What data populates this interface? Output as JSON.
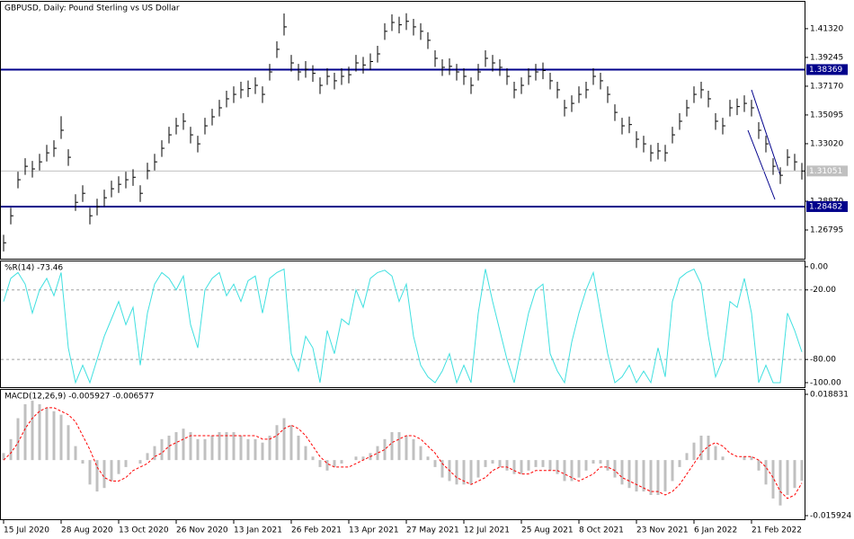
{
  "chart_data": [
    {
      "type": "ohlc",
      "title": "GBPUSD, Daily:  Pound Sterling vs US Dollar",
      "color": "#000000",
      "high": [
        1.2645,
        1.284,
        1.31,
        1.3197,
        1.3178,
        1.3229,
        1.3294,
        1.3327,
        1.35,
        1.3262,
        1.2937,
        1.3002,
        1.284,
        1.2905,
        1.297,
        1.3035,
        1.3067,
        1.31,
        1.3118,
        1.3002,
        1.3165,
        1.3229,
        1.3327,
        1.3424,
        1.3489,
        1.3522,
        1.3424,
        1.3359,
        1.3489,
        1.3554,
        1.3619,
        1.3684,
        1.3716,
        1.3749,
        1.3758,
        1.3781,
        1.3716,
        1.3878,
        1.4041,
        1.4242,
        1.3943,
        1.3878,
        1.3898,
        1.3868,
        1.3781,
        1.3846,
        1.3814,
        1.3846,
        1.3858,
        1.3943,
        1.3928,
        1.3953,
        1.4008,
        1.4171,
        1.4235,
        1.4218,
        1.4243,
        1.4203,
        1.4171,
        1.4106,
        1.3976,
        1.3911,
        1.3918,
        1.3878,
        1.3846,
        1.3781,
        1.3878,
        1.3976,
        1.3943,
        1.3911,
        1.3846,
        1.3749,
        1.3781,
        1.3846,
        1.3878,
        1.3888,
        1.3814,
        1.3749,
        1.3619,
        1.3651,
        1.3716,
        1.3749,
        1.3846,
        1.3814,
        1.3716,
        1.3586,
        1.3489,
        1.3498,
        1.3392,
        1.3359,
        1.3294,
        1.3308,
        1.3294,
        1.3424,
        1.3522,
        1.3619,
        1.3716,
        1.3749,
        1.3684,
        1.3522,
        1.3489,
        1.3619,
        1.3628,
        1.3651,
        1.3619,
        1.3457,
        1.3359,
        1.3197,
        1.3132,
        1.3262,
        1.3229,
        1.3163
      ],
      "low": [
        1.2525,
        1.272,
        1.298,
        1.3077,
        1.3058,
        1.3109,
        1.3174,
        1.3207,
        1.3337,
        1.3142,
        1.2817,
        1.2882,
        1.272,
        1.2785,
        1.285,
        1.2915,
        1.2947,
        1.298,
        1.2998,
        1.2882,
        1.3045,
        1.3109,
        1.3207,
        1.3304,
        1.3369,
        1.3402,
        1.3304,
        1.3239,
        1.3369,
        1.3434,
        1.3499,
        1.3564,
        1.3596,
        1.3629,
        1.3638,
        1.3661,
        1.3596,
        1.3758,
        1.3921,
        1.4083,
        1.3823,
        1.3758,
        1.3778,
        1.3748,
        1.3661,
        1.3726,
        1.3694,
        1.3726,
        1.3738,
        1.3823,
        1.3808,
        1.3833,
        1.3888,
        1.4051,
        1.4115,
        1.4098,
        1.4123,
        1.4083,
        1.4051,
        1.3986,
        1.3856,
        1.3791,
        1.3798,
        1.3758,
        1.3726,
        1.3661,
        1.3758,
        1.3856,
        1.3823,
        1.3791,
        1.3726,
        1.3629,
        1.3661,
        1.3726,
        1.3758,
        1.3768,
        1.3694,
        1.3629,
        1.3499,
        1.3531,
        1.3596,
        1.3629,
        1.3726,
        1.3694,
        1.3596,
        1.3466,
        1.3369,
        1.3378,
        1.3272,
        1.3239,
        1.3174,
        1.3188,
        1.3174,
        1.3304,
        1.3402,
        1.3499,
        1.3596,
        1.3629,
        1.3564,
        1.3402,
        1.3369,
        1.3499,
        1.3508,
        1.3531,
        1.3499,
        1.3337,
        1.3239,
        1.3077,
        1.3012,
        1.3142,
        1.3109,
        1.3043
      ],
      "close": [
        1.2587,
        1.2782,
        1.3042,
        1.3139,
        1.312,
        1.3171,
        1.3236,
        1.3269,
        1.3399,
        1.3204,
        1.2879,
        1.2944,
        1.2782,
        1.2847,
        1.2912,
        1.2977,
        1.3009,
        1.3042,
        1.306,
        1.2944,
        1.3107,
        1.3171,
        1.3269,
        1.3366,
        1.3431,
        1.3464,
        1.3366,
        1.3301,
        1.3431,
        1.3496,
        1.3561,
        1.3626,
        1.3658,
        1.3691,
        1.37,
        1.3723,
        1.3658,
        1.382,
        1.3983,
        1.4145,
        1.3885,
        1.382,
        1.384,
        1.381,
        1.3723,
        1.3788,
        1.3756,
        1.3788,
        1.38,
        1.3885,
        1.387,
        1.3895,
        1.395,
        1.4113,
        1.4177,
        1.416,
        1.4185,
        1.4145,
        1.4113,
        1.4048,
        1.3918,
        1.3853,
        1.386,
        1.382,
        1.3788,
        1.3723,
        1.382,
        1.3918,
        1.3885,
        1.3853,
        1.3788,
        1.3691,
        1.3723,
        1.3788,
        1.382,
        1.383,
        1.3756,
        1.3691,
        1.3561,
        1.3593,
        1.3658,
        1.3691,
        1.3788,
        1.3756,
        1.3658,
        1.3528,
        1.3431,
        1.344,
        1.3334,
        1.3301,
        1.3236,
        1.325,
        1.3236,
        1.3366,
        1.3464,
        1.3561,
        1.3658,
        1.3691,
        1.3626,
        1.3464,
        1.3431,
        1.3561,
        1.357,
        1.3593,
        1.3561,
        1.3399,
        1.3301,
        1.3139,
        1.3074,
        1.3204,
        1.3171,
        1.3105
      ],
      "ylim": [
        1.2472,
        1.4326
      ],
      "yticks": [
        {
          "value": 1.4132,
          "label": "1.41320"
        },
        1.39245,
        {
          "value": 1.3717,
          "label": "1.37170"
        },
        1.35095,
        {
          "value": 1.3302,
          "label": "1.33020"
        },
        {
          "value": 1.2887,
          "label": "1.28870"
        },
        1.26795
      ],
      "hlines": [
        1.38369,
        1.28482
      ],
      "hline_color": "#00008b",
      "last_price": 1.31051,
      "last_color": "#c0c0c0"
    },
    {
      "type": "line",
      "title": "%R(14) -73.46",
      "color": "#40e0e0",
      "values": [
        -30,
        -10,
        -5,
        -15,
        -40,
        -20,
        -10,
        -25,
        -5,
        -70,
        -100,
        -85,
        -100,
        -80,
        -60,
        -45,
        -30,
        -50,
        -35,
        -85,
        -40,
        -15,
        -5,
        -10,
        -20,
        -8,
        -50,
        -70,
        -20,
        -10,
        -5,
        -25,
        -15,
        -30,
        -12,
        -8,
        -40,
        -10,
        -5,
        -2,
        -75,
        -90,
        -60,
        -70,
        -100,
        -55,
        -75,
        -45,
        -50,
        -20,
        -35,
        -10,
        -5,
        -3,
        -8,
        -30,
        -15,
        -60,
        -85,
        -95,
        -100,
        -90,
        -75,
        -100,
        -85,
        -100,
        -40,
        -2,
        -30,
        -55,
        -80,
        -100,
        -70,
        -40,
        -20,
        -15,
        -75,
        -90,
        -100,
        -65,
        -40,
        -20,
        -5,
        -40,
        -75,
        -100,
        -95,
        -85,
        -100,
        -90,
        -100,
        -70,
        -95,
        -30,
        -10,
        -5,
        -2,
        -15,
        -60,
        -95,
        -80,
        -30,
        -35,
        -10,
        -40,
        -100,
        -85,
        -100,
        -100,
        -40,
        -55,
        -73.46
      ],
      "ylim": [
        -103.9,
        4.6
      ],
      "yticks": [
        {
          "value": 0,
          "label": "0.00"
        },
        {
          "value": -20,
          "label": "-20.00"
        },
        {
          "value": -80,
          "label": "-80.00"
        },
        {
          "value": -100,
          "label": "-100.00"
        }
      ],
      "levels": [
        -20,
        -80
      ]
    },
    {
      "type": "macd",
      "title": "MACD(12,26,9) -0.005927 -0.006577",
      "categories": [
        "15 Jul 2020",
        null,
        null,
        null,
        null,
        null,
        null,
        null,
        "28 Aug 2020",
        null,
        null,
        null,
        null,
        null,
        null,
        null,
        "13 Oct 2020",
        null,
        null,
        null,
        null,
        null,
        null,
        null,
        "26 Nov 2020",
        null,
        null,
        null,
        null,
        null,
        null,
        null,
        "13 Jan 2021",
        null,
        null,
        null,
        null,
        null,
        null,
        null,
        "26 Feb 2021",
        null,
        null,
        null,
        null,
        null,
        null,
        null,
        "13 Apr 2021",
        null,
        null,
        null,
        null,
        null,
        null,
        null,
        "27 May 2021",
        null,
        null,
        null,
        null,
        null,
        null,
        null,
        "12 Jul 2021",
        null,
        null,
        null,
        null,
        null,
        null,
        null,
        "25 Aug 2021",
        null,
        null,
        null,
        null,
        null,
        null,
        null,
        "8 Oct 2021",
        null,
        null,
        null,
        null,
        null,
        null,
        null,
        "23 Nov 2021",
        null,
        null,
        null,
        null,
        null,
        null,
        null,
        "6 Jan 2022",
        null,
        null,
        null,
        null,
        null,
        null,
        null,
        "21 Feb 2022",
        null,
        null,
        null,
        null,
        null,
        null,
        null
      ],
      "histogram": {
        "color": "#c0c0c0",
        "values": [
          0.002,
          0.006,
          0.012,
          0.016,
          0.017,
          0.016,
          0.015,
          0.014,
          0.013,
          0.01,
          0.004,
          -0.001,
          -0.007,
          -0.009,
          -0.008,
          -0.006,
          -0.004,
          -0.002,
          0.0,
          -0.001,
          0.002,
          0.004,
          0.006,
          0.007,
          0.008,
          0.009,
          0.008,
          0.006,
          0.006,
          0.007,
          0.008,
          0.008,
          0.008,
          0.007,
          0.006,
          0.006,
          0.005,
          0.007,
          0.01,
          0.012,
          0.01,
          0.007,
          0.004,
          0.001,
          -0.002,
          -0.003,
          -0.002,
          -0.001,
          0.0,
          0.001,
          0.001,
          0.002,
          0.004,
          0.006,
          0.008,
          0.008,
          0.007,
          0.006,
          0.004,
          0.001,
          -0.002,
          -0.005,
          -0.006,
          -0.007,
          -0.007,
          -0.007,
          -0.005,
          -0.002,
          -0.001,
          -0.002,
          -0.003,
          -0.004,
          -0.004,
          -0.003,
          -0.002,
          -0.002,
          -0.003,
          -0.004,
          -0.006,
          -0.006,
          -0.005,
          -0.003,
          -0.001,
          -0.001,
          -0.003,
          -0.005,
          -0.007,
          -0.008,
          -0.009,
          -0.009,
          -0.01,
          -0.01,
          -0.009,
          -0.006,
          -0.002,
          0.002,
          0.005,
          0.007,
          0.007,
          0.004,
          0.001,
          0.0,
          0.0,
          0.001,
          0.001,
          -0.003,
          -0.007,
          -0.011,
          -0.013,
          -0.01,
          -0.008,
          -0.005927
        ]
      },
      "signal": {
        "color": "#ff0000",
        "values": [
          0.0,
          0.002,
          0.005,
          0.009,
          0.012,
          0.014,
          0.015,
          0.015,
          0.014,
          0.013,
          0.011,
          0.007,
          0.003,
          -0.002,
          -0.005,
          -0.006,
          -0.006,
          -0.005,
          -0.003,
          -0.002,
          -0.001,
          0.001,
          0.002,
          0.004,
          0.005,
          0.006,
          0.007,
          0.007,
          0.007,
          0.007,
          0.007,
          0.007,
          0.007,
          0.007,
          0.007,
          0.007,
          0.006,
          0.006,
          0.007,
          0.009,
          0.01,
          0.009,
          0.007,
          0.004,
          0.001,
          -0.001,
          -0.002,
          -0.002,
          -0.002,
          -0.001,
          0.0,
          0.001,
          0.002,
          0.003,
          0.005,
          0.006,
          0.007,
          0.007,
          0.006,
          0.004,
          0.002,
          -0.001,
          -0.003,
          -0.005,
          -0.006,
          -0.007,
          -0.006,
          -0.005,
          -0.003,
          -0.002,
          -0.002,
          -0.003,
          -0.004,
          -0.004,
          -0.003,
          -0.003,
          -0.003,
          -0.003,
          -0.004,
          -0.005,
          -0.006,
          -0.005,
          -0.004,
          -0.002,
          -0.002,
          -0.003,
          -0.005,
          -0.006,
          -0.007,
          -0.008,
          -0.009,
          -0.009,
          -0.01,
          -0.009,
          -0.007,
          -0.004,
          -0.001,
          0.002,
          0.004,
          0.005,
          0.004,
          0.002,
          0.001,
          0.001,
          0.001,
          0.0,
          -0.002,
          -0.005,
          -0.009,
          -0.011,
          -0.01,
          -0.006577
        ]
      },
      "ylim": [
        -0.01695,
        0.02011
      ],
      "yticks": [
        0.018831,
        -0.015924
      ]
    }
  ]
}
